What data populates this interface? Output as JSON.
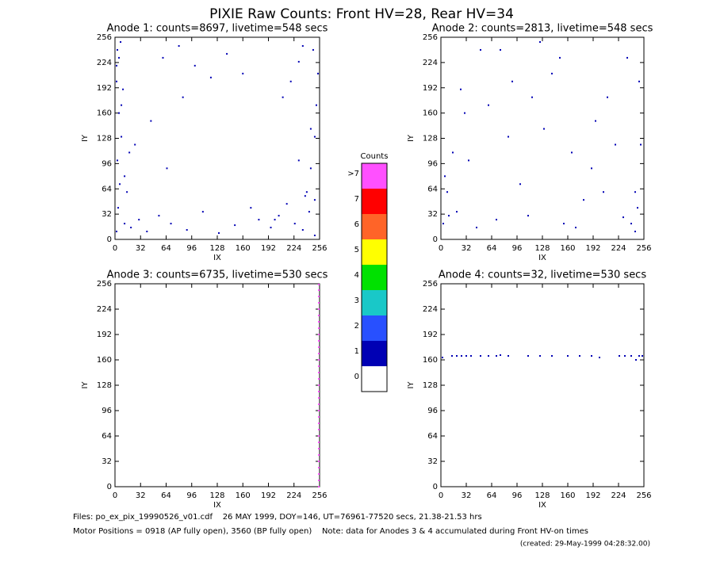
{
  "title": "PIXIE Raw Counts:  Front HV=28, Rear HV=34",
  "footer": [
    "Files: po_ex_pix_19990526_v01.cdf    26 MAY 1999, DOY=146, UT=76961-77520 secs, 21.38-21.53 hrs",
    "Motor Positions = 0918 (AP fully open), 3560 (BP fully open)    Note: data for Anodes 3 & 4 accumulated during Front HV-on times",
    "(created: 29-May-1999 04:28:32.00)"
  ],
  "chart_data": [
    {
      "type": "scatter",
      "title": "Anode 1: counts=8697, livetime=548 secs",
      "x_label": "IX",
      "y_label": "IY",
      "xlim": [
        0,
        256
      ],
      "ylim": [
        0,
        256
      ],
      "xticks": [
        0,
        32,
        64,
        96,
        128,
        160,
        192,
        224,
        256
      ],
      "yticks": [
        0,
        32,
        64,
        96,
        128,
        160,
        192,
        224,
        256
      ],
      "series": [
        {
          "color": "#0000b4",
          "x": [
            2,
            4,
            6,
            3,
            8,
            5,
            10,
            2,
            7,
            12,
            3,
            15,
            20,
            30,
            40,
            55,
            70,
            90,
            110,
            130,
            150,
            170,
            180,
            195,
            205,
            215,
            225,
            235,
            240,
            245,
            250,
            252,
            254,
            248,
            243,
            238,
            230,
            220,
            210,
            200,
            60,
            80,
            100,
            120,
            140,
            160,
            25,
            45,
            65,
            85,
            230,
            245,
            250,
            12,
            18,
            8,
            2,
            5,
            235,
            250
          ],
          "y": [
            10,
            40,
            70,
            100,
            130,
            160,
            190,
            220,
            250,
            20,
            240,
            60,
            15,
            25,
            10,
            30,
            20,
            12,
            35,
            8,
            18,
            40,
            25,
            15,
            30,
            45,
            20,
            12,
            60,
            90,
            130,
            170,
            210,
            240,
            35,
            55,
            225,
            200,
            180,
            25,
            230,
            245,
            220,
            205,
            235,
            210,
            120,
            150,
            90,
            180,
            100,
            140,
            50,
            80,
            110,
            170,
            200,
            230,
            245,
            5
          ]
        }
      ]
    },
    {
      "type": "scatter",
      "title": "Anode 2: counts=2813, livetime=548 secs",
      "x_label": "IX",
      "y_label": "IY",
      "xlim": [
        0,
        256
      ],
      "ylim": [
        0,
        256
      ],
      "xticks": [
        0,
        32,
        64,
        96,
        128,
        160,
        192,
        224,
        256
      ],
      "yticks": [
        0,
        32,
        64,
        96,
        128,
        160,
        192,
        224,
        256
      ],
      "series": [
        {
          "color": "#0000b4",
          "x": [
            3,
            8,
            15,
            30,
            50,
            70,
            90,
            110,
            130,
            150,
            170,
            190,
            210,
            230,
            245,
            252,
            250,
            240,
            20,
            60,
            100,
            140,
            180,
            220,
            35,
            75,
            115,
            155,
            195,
            235,
            5,
            248,
            10,
            245,
            125,
            165,
            85,
            205,
            45,
            25
          ],
          "y": [
            20,
            60,
            110,
            160,
            240,
            25,
            200,
            30,
            140,
            230,
            15,
            90,
            180,
            28,
            60,
            120,
            200,
            20,
            35,
            170,
            70,
            210,
            50,
            120,
            100,
            240,
            180,
            20,
            150,
            230,
            80,
            40,
            30,
            10,
            250,
            110,
            130,
            60,
            15,
            190
          ]
        }
      ]
    },
    {
      "type": "scatter",
      "title": "Anode 3: counts=6735, livetime=530 secs",
      "x_label": "IX",
      "y_label": "IY",
      "xlim": [
        0,
        256
      ],
      "ylim": [
        0,
        256
      ],
      "xticks": [
        0,
        32,
        64,
        96,
        128,
        160,
        192,
        224,
        256
      ],
      "yticks": [
        0,
        32,
        64,
        96,
        128,
        160,
        192,
        224,
        256
      ],
      "series": [
        {
          "color": "#ff50ff",
          "x": [
            255,
            255,
            255,
            255,
            255,
            255,
            255,
            255,
            255,
            255,
            255,
            255,
            255,
            255,
            255,
            255,
            255,
            255,
            255,
            255,
            255,
            255,
            255,
            255,
            255,
            255,
            255,
            255,
            255,
            255,
            255,
            255,
            255
          ],
          "y": [
            0,
            8,
            16,
            24,
            32,
            40,
            48,
            56,
            64,
            72,
            80,
            88,
            96,
            104,
            112,
            120,
            128,
            136,
            144,
            152,
            160,
            168,
            176,
            184,
            192,
            200,
            208,
            216,
            224,
            232,
            240,
            248,
            255
          ]
        }
      ]
    },
    {
      "type": "scatter",
      "title": "Anode 4: counts=32, livetime=530 secs",
      "x_label": "IX",
      "y_label": "IY",
      "xlim": [
        0,
        256
      ],
      "ylim": [
        0,
        256
      ],
      "xticks": [
        0,
        32,
        64,
        96,
        128,
        160,
        192,
        224,
        256
      ],
      "yticks": [
        0,
        32,
        64,
        96,
        128,
        160,
        192,
        224,
        256
      ],
      "series": [
        {
          "color": "#0000b4",
          "x": [
            2,
            14,
            20,
            26,
            32,
            38,
            50,
            60,
            70,
            75,
            85,
            110,
            125,
            140,
            160,
            175,
            190,
            200,
            225,
            232,
            240,
            246,
            250,
            254
          ],
          "y": [
            163,
            165,
            165,
            165,
            165,
            165,
            165,
            165,
            165,
            166,
            165,
            165,
            165,
            165,
            165,
            165,
            165,
            163,
            165,
            165,
            165,
            160,
            165,
            165
          ]
        }
      ]
    },
    {
      "type": "colorbar",
      "title": "Counts",
      "categories": [
        "0",
        "1",
        "2",
        "3",
        "4",
        "5",
        "6",
        "7",
        ">7"
      ],
      "colors": [
        "#ffffff",
        "#0000b4",
        "#2850ff",
        "#19c8c8",
        "#00e100",
        "#ffff00",
        "#ff6428",
        "#ff0000",
        "#ff50ff"
      ]
    }
  ]
}
